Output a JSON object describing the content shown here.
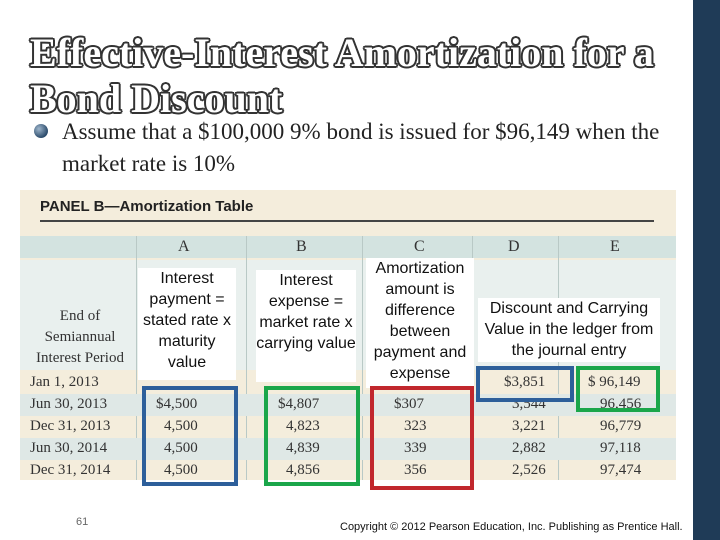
{
  "slide": {
    "title": "Effective-Interest Amortization for a Bond Discount",
    "bullet": "Assume that a $100,000 9% bond is issued for $96,149 when the market rate is 10%",
    "page_number": "61",
    "copyright": "Copyright © 2012 Pearson Education, Inc. Publishing as Prentice Hall."
  },
  "table": {
    "panel_title": "PANEL B—Amortization Table",
    "columns": [
      "A",
      "B",
      "C",
      "D",
      "E"
    ],
    "row_header": "End of Semiannual Interest Period",
    "rows": [
      {
        "date": "Jan 1, 2013",
        "a": "",
        "b": "",
        "c": "",
        "d": "$3,851",
        "e": "$ 96,149"
      },
      {
        "date": "Jun 30, 2013",
        "a": "$4,500",
        "b": "$4,807",
        "c": "$307",
        "d": "3,544",
        "e": "96,456"
      },
      {
        "date": "Dec 31, 2013",
        "a": "4,500",
        "b": "4,823",
        "c": "323",
        "d": "3,221",
        "e": "96,779"
      },
      {
        "date": "Jun 30, 2014",
        "a": "4,500",
        "b": "4,839",
        "c": "339",
        "d": "2,882",
        "e": "97,118"
      },
      {
        "date": "Dec 31, 2014",
        "a": "4,500",
        "b": "4,856",
        "c": "356",
        "d": "2,526",
        "e": "97,474"
      }
    ]
  },
  "callouts": {
    "a": "Interest payment = stated rate x maturity value",
    "b": "Interest expense = market rate x carrying value",
    "c": "Amortization amount is difference between payment and expense",
    "de": "Discount and Carrying Value in the ledger from the journal entry"
  },
  "colors": {
    "blue_box": "#2d5f9a",
    "green_box": "#1aa64a",
    "red_box": "#c1272d",
    "sidebar": "#1f3b57"
  }
}
